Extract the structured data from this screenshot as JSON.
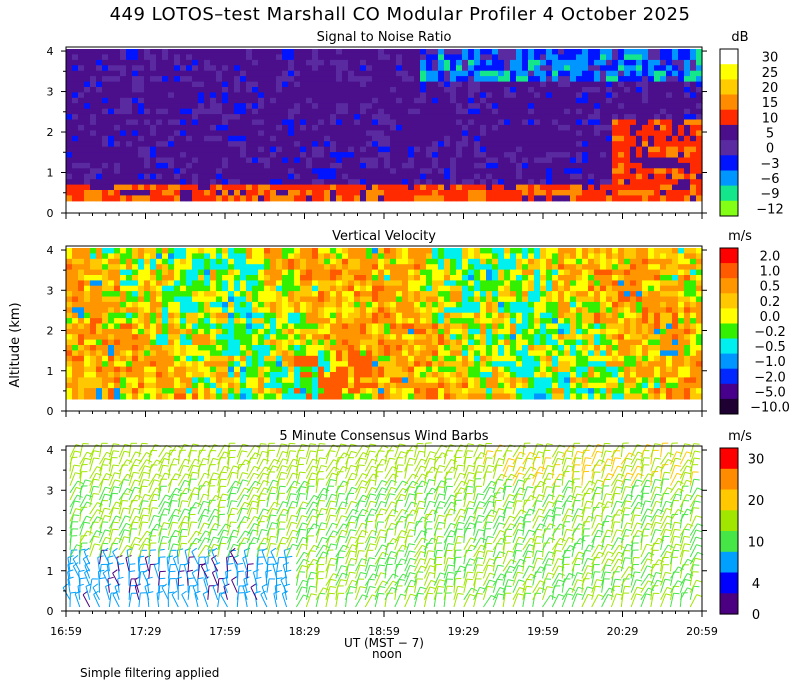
{
  "figure": {
    "title": "449 LOTOS–test Marshall CO Modular Profiler  4 October 2025",
    "ylabel": "Altitude (km)",
    "xlabel": "UT  (MST − 7)",
    "noon_label": "noon",
    "note": "Simple filtering applied"
  },
  "chart_data": [
    {
      "type": "heatmap",
      "title": "Signal to Noise Ratio",
      "unit": "dB",
      "x_ticks": [
        "16:59",
        "17:29",
        "17:59",
        "18:29",
        "18:59",
        "19:29",
        "19:59",
        "20:29",
        "20:59"
      ],
      "y_ticks": [
        0,
        1,
        2,
        3,
        4
      ],
      "ylim": [
        0,
        4.1
      ],
      "colorbar": {
        "labels": [
          "30",
          "25",
          "20",
          "15",
          "10",
          "5",
          "0",
          "−3",
          "−6",
          "−9",
          "−12"
        ],
        "colors": [
          "#ffffff",
          "#ffff00",
          "#ffcc00",
          "#ff8c00",
          "#ff2a00",
          "#4b0f8c",
          "#5a2aa0",
          "#0014ff",
          "#0096ff",
          "#14e68c",
          "#82ff14"
        ]
      },
      "description_values": {
        "dominant_range_dB": [
          -3,
          5
        ],
        "near_surface_dB": [
          10,
          15
        ],
        "top_late_dB": [
          -9,
          30
        ]
      }
    },
    {
      "type": "heatmap",
      "title": "Vertical Velocity",
      "unit": "m/s",
      "x_ticks": [
        "16:59",
        "17:29",
        "17:59",
        "18:29",
        "18:59",
        "19:29",
        "19:59",
        "20:29",
        "20:59"
      ],
      "y_ticks": [
        0,
        1,
        2,
        3,
        4
      ],
      "ylim": [
        0,
        4.1
      ],
      "colorbar": {
        "labels": [
          "2.0",
          "1.0",
          "0.5",
          "0.2",
          "0.0",
          "−0.2",
          "−0.5",
          "−1.0",
          "−2.0",
          "−5.0",
          "−10.0"
        ],
        "colors": [
          "#ff0000",
          "#ff5a00",
          "#ff9600",
          "#ffc800",
          "#ffff00",
          "#32f000",
          "#00f0f0",
          "#0096ff",
          "#0028ff",
          "#46008c",
          "#1e0032"
        ]
      },
      "description_values": {
        "dominant_range_ms": [
          -0.5,
          0.5
        ]
      }
    },
    {
      "type": "scatter",
      "title": "5 Minute Consensus Wind Barbs",
      "unit": "m/s",
      "x_ticks": [
        "16:59",
        "17:29",
        "17:59",
        "18:29",
        "18:59",
        "19:29",
        "19:59",
        "20:29",
        "20:59"
      ],
      "y_ticks": [
        0,
        1,
        2,
        3,
        4
      ],
      "ylim": [
        0,
        4.1
      ],
      "colorbar": {
        "labels": [
          "30",
          "20",
          "10",
          "4",
          "0"
        ],
        "colors": [
          "#ff0000",
          "#ff8c00",
          "#ffc800",
          "#a0e600",
          "#46e646",
          "#00a0ff",
          "#0000ff",
          "#4b0082"
        ]
      },
      "description_values": {
        "typical_speed_ms": [
          5,
          15
        ],
        "low_level_early_ms": [
          0,
          4
        ]
      }
    }
  ]
}
